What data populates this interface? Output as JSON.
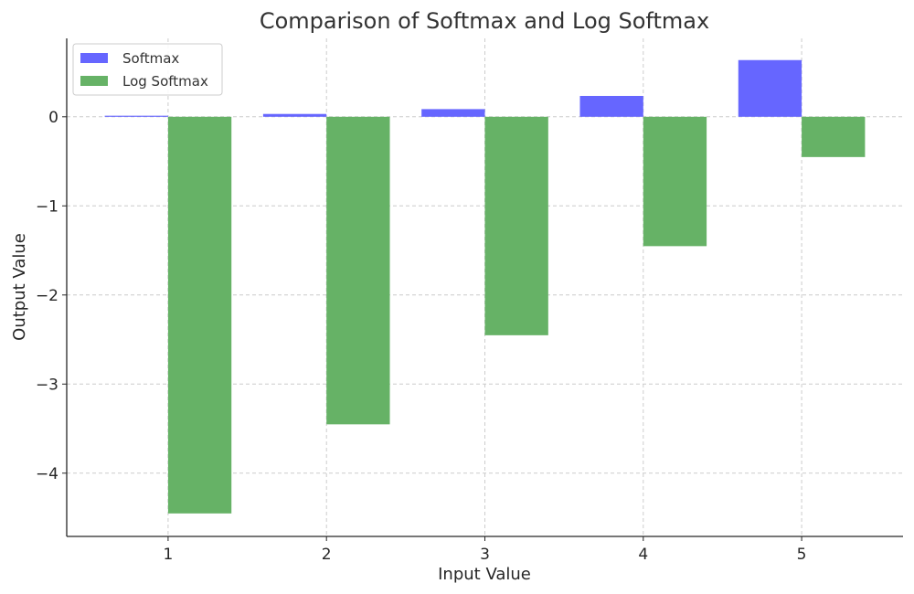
{
  "chart_data": {
    "type": "bar",
    "title": "Comparison of Softmax and Log Softmax",
    "xlabel": "Input Value",
    "ylabel": "Output Value",
    "categories": [
      1,
      2,
      3,
      4,
      5
    ],
    "x_tick_labels": [
      "1",
      "2",
      "3",
      "4",
      "5"
    ],
    "y_ticks": [
      0,
      -1,
      -2,
      -3,
      -4
    ],
    "y_tick_labels": [
      "0",
      "−1",
      "−2",
      "−3",
      "−4"
    ],
    "xlim": [
      0.36,
      5.64
    ],
    "ylim": [
      -4.71,
      0.88
    ],
    "grid": true,
    "legend_placement": "top-left",
    "bar_width": 0.4,
    "series": [
      {
        "name": "Softmax",
        "color": "#6666ff",
        "values": [
          0.0117,
          0.0317,
          0.0861,
          0.2341,
          0.6364
        ]
      },
      {
        "name": "Log Softmax",
        "color": "#66b266",
        "values": [
          -4.4519,
          -3.4519,
          -2.4519,
          -1.4519,
          -0.4519
        ]
      }
    ]
  }
}
